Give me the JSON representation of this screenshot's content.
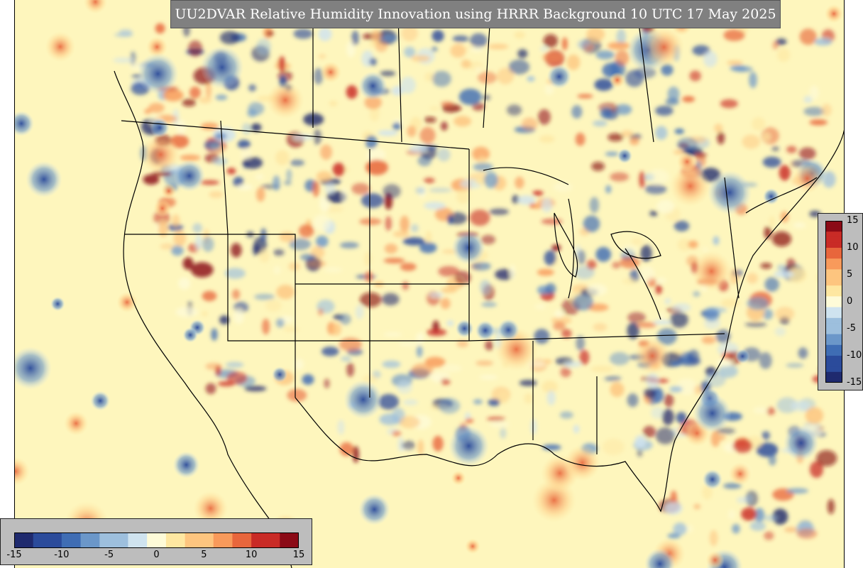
{
  "title": "UU2DVAR Relative Humidity Innovation using HRRR Background 10 UTC 17 May 2025",
  "colors": {
    "background": "#fef6bd",
    "title_box": "#808080",
    "colorbar_panel": "#bdbdbd",
    "borders": "#000000"
  },
  "colorbar": {
    "ramp": [
      "#1f2a6e",
      "#2b4b9b",
      "#3f6db4",
      "#6b97c9",
      "#9dbfdd",
      "#cfe3ef",
      "#fefbd8",
      "#fee7a1",
      "#fdc57f",
      "#f89a5b",
      "#e8663c",
      "#c92b26",
      "#8b0a16"
    ],
    "vertical_ticks": [
      {
        "label": "15",
        "value": 15
      },
      {
        "label": "10",
        "value": 10
      },
      {
        "label": "5",
        "value": 5
      },
      {
        "label": "0",
        "value": 0
      },
      {
        "label": "-5",
        "value": -5
      },
      {
        "label": "-10",
        "value": -10
      },
      {
        "label": "-15",
        "value": -15
      }
    ],
    "horizontal_ticks": [
      {
        "label": "-15",
        "value": -15
      },
      {
        "label": "-10",
        "value": -10
      },
      {
        "label": "-5",
        "value": -5
      },
      {
        "label": "0",
        "value": 0
      },
      {
        "label": "5",
        "value": 5
      },
      {
        "label": "10",
        "value": 10
      },
      {
        "label": "15",
        "value": 15
      }
    ],
    "range": [
      -15,
      15
    ]
  }
}
